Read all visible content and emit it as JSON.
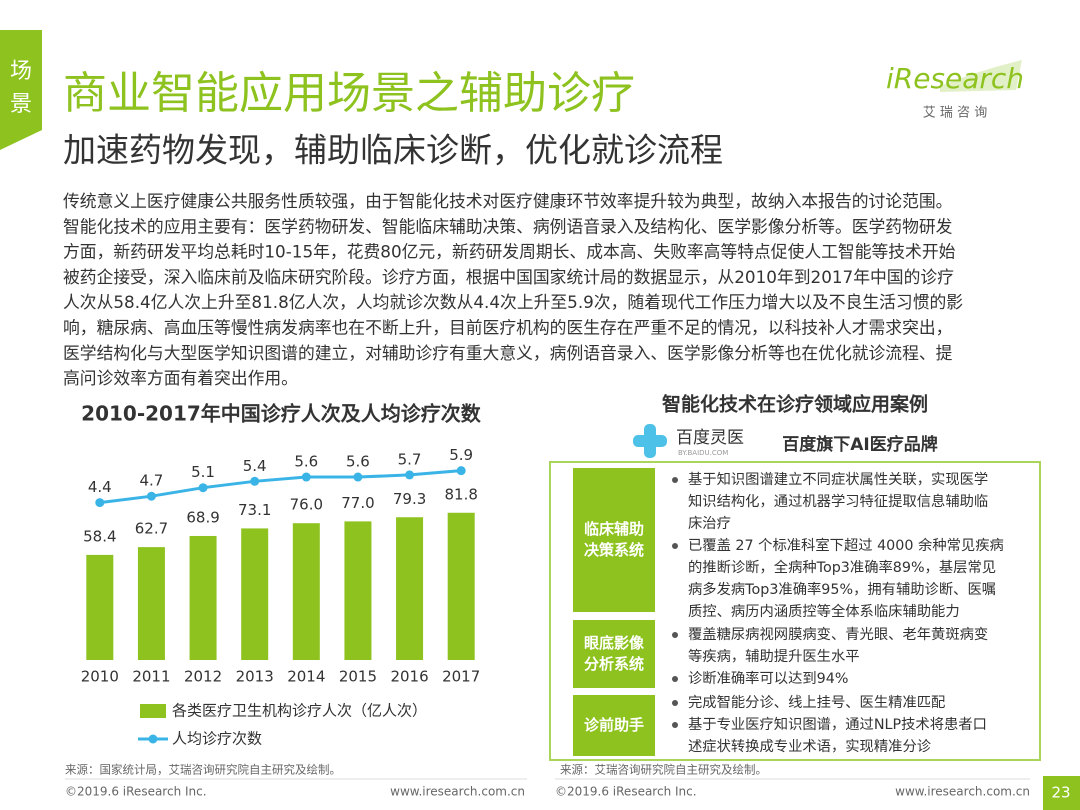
{
  "header": {
    "tab": [
      "场",
      "景"
    ],
    "title": "商业智能应用场景之辅助诊疗",
    "subtitle": "加速药物发现，辅助临床诊断，优化就诊流程",
    "logo": "iResearch",
    "logo_sub": "艾 瑞 咨 询"
  },
  "body": {
    "lines": [
      "传统意义上医疗健康公共服务性质较强，由于智能化技术对医疗健康环节效率提升较为典型，故纳入本报告的讨论范围。",
      "智能化技术的应用主要有：医学药物研发、智能临床辅助决策、病例语音录入及结构化、医学影像分析等。医学药物研发",
      "方面，新药研发平均总耗时10-15年，花费80亿元，新药研发周期长、成本高、失败率高等特点促使人工智能等技术开始",
      "被药企接受，深入临床前及临床研究阶段。诊疗方面，根据中国国家统计局的数据显示，从2010年到2017年中国的诊疗",
      "人次从58.4亿人次上升至81.8亿人次，人均就诊次数从4.4次上升至5.9次，随着现代工作压力增大以及不良生活习惯的影",
      "响，糖尿病、高血压等慢性病发病率也在不断上升，目前医疗机构的医生存在严重不足的情况，以科技补人才需求突出，",
      "医学结构化与大型医学知识图谱的建立，对辅助诊疗有重大意义，病例语音录入、医学影像分析等也在优化就诊流程、提",
      "高问诊效率方面有着突出作用。"
    ]
  },
  "chart_data": {
    "type": "combo",
    "title": "2010-2017年中国诊疗人次及人均诊疗次数",
    "categories": [
      "2010",
      "2011",
      "2012",
      "2013",
      "2014",
      "2015",
      "2016",
      "2017"
    ],
    "series": [
      {
        "name": "各类医疗卫生机构诊疗人次（亿人次）",
        "type": "bar",
        "color": "#8dc21f",
        "values": [
          58.4,
          62.7,
          68.9,
          73.1,
          76.0,
          77.0,
          79.3,
          81.8
        ],
        "value_labels": [
          "58.4",
          "62.7",
          "68.9",
          "73.1",
          "76.0",
          "77.0",
          "79.3",
          "81.8"
        ]
      },
      {
        "name": "人均诊疗次数",
        "type": "line",
        "axis": "y2",
        "color": "#3ab4e6",
        "values": [
          4.4,
          4.7,
          5.1,
          5.4,
          5.6,
          5.6,
          5.7,
          5.9
        ]
      }
    ],
    "ylim": [
      0,
      130
    ],
    "y2lim": [
      -3,
      8
    ],
    "source": "来源：国家统计局，艾瑞咨询研究院自主研究及绘制。"
  },
  "panel": {
    "title": "智能化技术在诊疗领域应用案例",
    "brand_logo": "百度灵医",
    "brand_logo_sub": "BY.BAIDU.COM",
    "brand": "百度旗下AI医疗品牌",
    "sections": [
      {
        "label": [
          "临床辅助",
          "决策系统"
        ],
        "bullets": [
          [
            "基于知识图谱建立不同症状属性关联，实现医学",
            "知识结构化，通过机器学习特征提取信息辅助临",
            "床治疗"
          ],
          [
            "已覆盖 27 个标准科室下超过 4000 余种常见疾病",
            "的推断诊断，全病种Top3准确率89%，基层常见",
            "病多发病Top3准确率95%，拥有辅助诊断、医嘱",
            "质控、病历内涵质控等全体系临床辅助能力"
          ]
        ]
      },
      {
        "label": [
          "眼底影像",
          "分析系统"
        ],
        "bullets": [
          [
            "覆盖糖尿病视网膜病变、青光眼、老年黄斑病变",
            "等疾病，辅助提升医生水平"
          ],
          [
            "诊断准确率可以达到94%"
          ]
        ]
      },
      {
        "label": [
          "诊前助手"
        ],
        "bullets": [
          [
            "完成智能分诊、线上挂号、医生精准匹配"
          ],
          [
            "基于专业医疗知识图谱，通过NLP技术将患者口",
            "述症状转换成专业术语，实现精准分诊"
          ]
        ]
      }
    ],
    "source": "来源：艾瑞咨询研究院自主研究及绘制。"
  },
  "footer": {
    "copyright": "©2019.6 iResearch Inc.",
    "url": "www.iresearch.com.cn",
    "page": "23"
  }
}
